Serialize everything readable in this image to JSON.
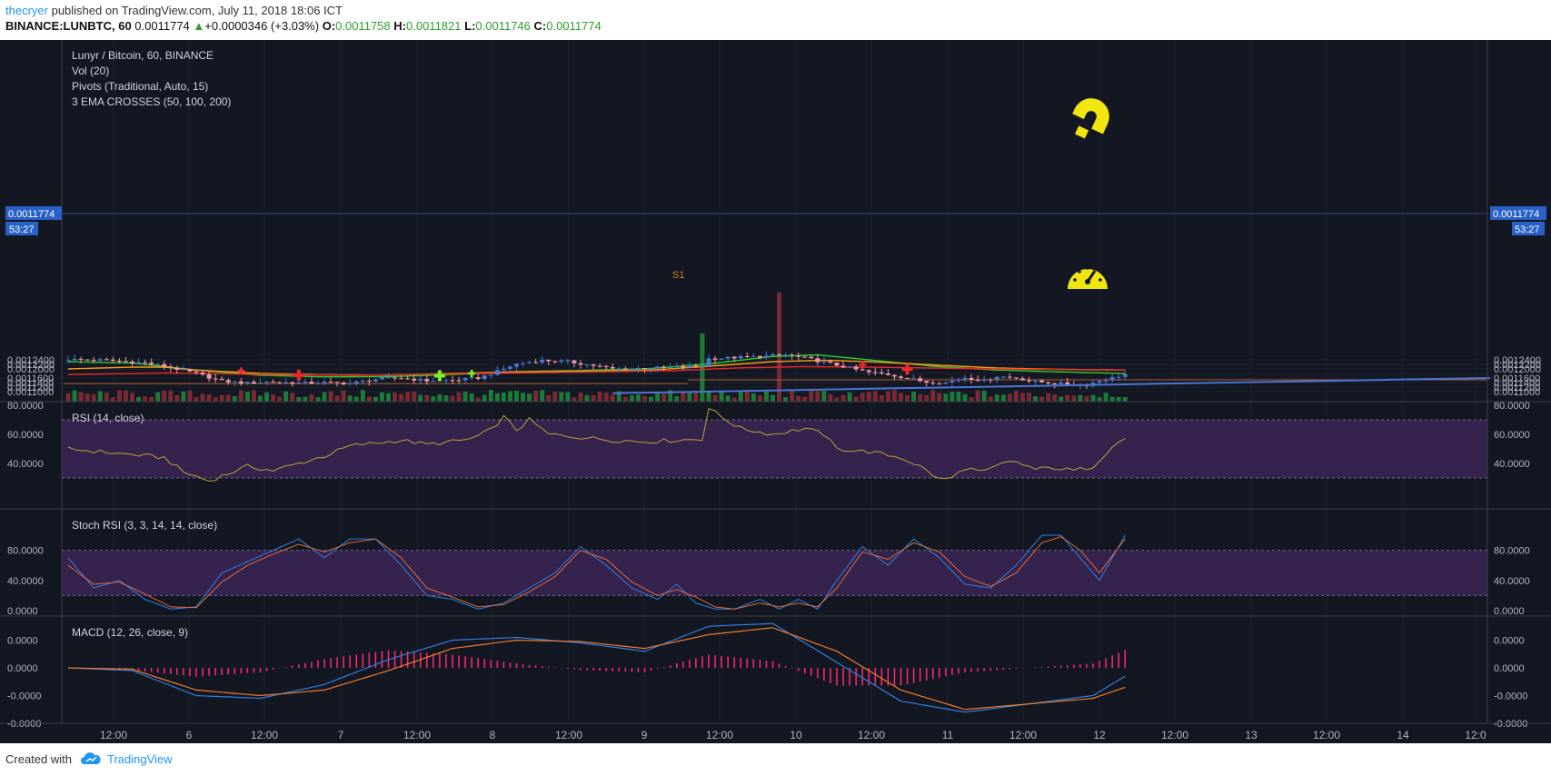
{
  "header": {
    "author": "thecryer",
    "published": "published on TradingView.com, July 11, 2018 18:06 ICT",
    "symbol": "BINANCE:LUNBTC, 60",
    "price": "0.0011774",
    "change": "+0.0000346 (+3.03%)",
    "open_label": "O:",
    "open": "0.0011758",
    "high_label": "H:",
    "high": "0.0011821",
    "low_label": "L:",
    "low": "0.0011746",
    "close_label": "C:",
    "close": "0.0011774"
  },
  "legend": {
    "title": "Lunyr / Bitcoin, 60, BINANCE",
    "vol": "Vol (20)",
    "pivots": "Pivots (Traditional, Auto, 15)",
    "ema": "3 EMA CROSSES (50, 100, 200)"
  },
  "price_label": "0.0011774",
  "countdown": "53:27",
  "pivot_label": "S1",
  "panels": {
    "rsi": "RSI (14, close)",
    "stoch": "Stoch RSI (3, 3, 14, 14, close)",
    "macd": "MACD (12, 26, close, 9)"
  },
  "footer": {
    "created": "Created with",
    "brand": "TradingView"
  },
  "colors": {
    "bg": "#131722",
    "grid": "#1e2230",
    "up": "#4a78d0",
    "down": "#f199a8",
    "ema50": "#28d02a",
    "ema100": "#ff9a1a",
    "ema200": "#e82a2a",
    "trend": "#4a76d4",
    "rsi_band": "#35234e",
    "macd": "#2f7fe0",
    "signal": "#f07a2a",
    "hist": "#ff2b71"
  },
  "icons": [
    "question-mark-magnet-icon",
    "speedometer-icon",
    "tradingview-cloud-icon"
  ],
  "chart_data": [
    {
      "type": "candlestick",
      "title": "Lunyr / Bitcoin, 60, BINANCE",
      "y_ticks": [
        "0.0012400",
        "0.0012200",
        "0.0012000",
        "0.0011800",
        "0.0011600",
        "0.0011400",
        "0.0011200",
        "0.0011000"
      ],
      "x_ticks": [
        "12:00",
        "6",
        "12:00",
        "7",
        "12:00",
        "8",
        "12:00",
        "9",
        "12:00",
        "10",
        "12:00",
        "11",
        "12:00",
        "12",
        "12:00",
        "13",
        "12:00",
        "14",
        "12:0"
      ],
      "close_anchors": [
        [
          0,
          0.001242
        ],
        [
          6,
          0.001238
        ],
        [
          12,
          0.001226
        ],
        [
          15,
          0.001212
        ],
        [
          20,
          0.00118
        ],
        [
          24,
          0.001146
        ],
        [
          28,
          0.001138
        ],
        [
          32,
          0.001144
        ],
        [
          36,
          0.001138
        ],
        [
          40,
          0.00114
        ],
        [
          44,
          0.001136
        ],
        [
          48,
          0.001155
        ],
        [
          52,
          0.00116
        ],
        [
          56,
          0.001148
        ],
        [
          60,
          0.00115
        ],
        [
          64,
          0.00116
        ],
        [
          66,
          0.001178
        ],
        [
          70,
          0.001222
        ],
        [
          74,
          0.001238
        ],
        [
          78,
          0.001232
        ],
        [
          82,
          0.001215
        ],
        [
          85,
          0.0012
        ],
        [
          92,
          0.001205
        ],
        [
          96,
          0.001208
        ],
        [
          99,
          0.001215
        ],
        [
          100,
          0.001245
        ],
        [
          108,
          0.001255
        ],
        [
          112,
          0.001262
        ],
        [
          116,
          0.001242
        ],
        [
          121,
          0.00121
        ],
        [
          125,
          0.001185
        ],
        [
          128,
          0.001175
        ],
        [
          131,
          0.00116
        ],
        [
          134,
          0.001142
        ],
        [
          137,
          0.00114
        ],
        [
          140,
          0.001162
        ],
        [
          143,
          0.001148
        ],
        [
          145,
          0.001168
        ],
        [
          148,
          0.00116
        ],
        [
          151,
          0.001144
        ],
        [
          154,
          0.001137
        ],
        [
          157,
          0.001132
        ],
        [
          159,
          0.00113
        ],
        [
          161,
          0.001148
        ],
        [
          163,
          0.00116
        ],
        [
          165,
          0.001177
        ]
      ],
      "ema_lines": {
        "EMA 50": [
          [
            0,
            0.001232
          ],
          [
            10,
            0.001226
          ],
          [
            20,
            0.001195
          ],
          [
            30,
            0.001172
          ],
          [
            40,
            0.001165
          ],
          [
            50,
            0.001166
          ],
          [
            60,
            0.001175
          ],
          [
            70,
            0.001188
          ],
          [
            80,
            0.001193
          ],
          [
            90,
            0.0012
          ],
          [
            100,
            0.001222
          ],
          [
            110,
            0.001255
          ],
          [
            117,
            0.001262
          ],
          [
            125,
            0.00124
          ],
          [
            135,
            0.001212
          ],
          [
            145,
            0.001195
          ],
          [
            155,
            0.001187
          ],
          [
            165,
            0.00118
          ]
        ],
        "EMA 100": [
          [
            0,
            0.0012
          ],
          [
            10,
            0.001208
          ],
          [
            15,
            0.001208
          ],
          [
            20,
            0.001195
          ],
          [
            30,
            0.00118
          ],
          [
            40,
            0.001174
          ],
          [
            50,
            0.001173
          ],
          [
            60,
            0.00118
          ],
          [
            70,
            0.001187
          ],
          [
            80,
            0.00119
          ],
          [
            90,
            0.001193
          ],
          [
            100,
            0.001212
          ],
          [
            110,
            0.001232
          ],
          [
            118,
            0.001238
          ],
          [
            125,
            0.001232
          ],
          [
            135,
            0.001218
          ],
          [
            145,
            0.001204
          ],
          [
            155,
            0.001198
          ],
          [
            165,
            0.001195
          ]
        ],
        "EMA 200": [
          [
            0,
            0.001175
          ],
          [
            15,
            0.001182
          ],
          [
            25,
            0.001178
          ],
          [
            35,
            0.001174
          ],
          [
            45,
            0.001172
          ],
          [
            55,
            0.001176
          ],
          [
            65,
            0.00118
          ],
          [
            75,
            0.001184
          ],
          [
            85,
            0.001188
          ],
          [
            95,
            0.001193
          ],
          [
            105,
            0.001205
          ],
          [
            115,
            0.00121
          ],
          [
            125,
            0.001208
          ],
          [
            135,
            0.001204
          ],
          [
            145,
            0.0012
          ],
          [
            155,
            0.001197
          ],
          [
            165,
            0.001195
          ]
        ]
      },
      "pivot_levels": [
        0.001135,
        0.001152
      ],
      "trend_line": [
        [
          85,
          0.001093
        ],
        [
          222,
          0.00116
        ]
      ],
      "volume_spikes": [
        [
          99,
          0.25
        ],
        [
          111,
          0.4
        ]
      ]
    },
    {
      "type": "line",
      "title": "RSI (14, close)",
      "y_ticks": [
        "80.0000",
        "60.0000",
        "40.0000"
      ],
      "band": [
        30,
        70
      ],
      "values": [
        [
          0,
          50
        ],
        [
          5,
          48
        ],
        [
          10,
          46
        ],
        [
          15,
          44
        ],
        [
          18,
          34
        ],
        [
          22,
          28
        ],
        [
          25,
          33
        ],
        [
          28,
          38
        ],
        [
          32,
          35
        ],
        [
          36,
          40
        ],
        [
          40,
          45
        ],
        [
          44,
          52
        ],
        [
          48,
          54
        ],
        [
          52,
          56
        ],
        [
          56,
          53
        ],
        [
          60,
          55
        ],
        [
          63,
          57
        ],
        [
          66,
          63
        ],
        [
          68,
          72
        ],
        [
          70,
          63
        ],
        [
          72,
          70
        ],
        [
          75,
          60
        ],
        [
          80,
          58
        ],
        [
          85,
          56
        ],
        [
          90,
          55
        ],
        [
          95,
          56
        ],
        [
          99,
          57
        ],
        [
          100,
          78
        ],
        [
          102,
          72
        ],
        [
          105,
          64
        ],
        [
          110,
          60
        ],
        [
          115,
          64
        ],
        [
          118,
          60
        ],
        [
          120,
          50
        ],
        [
          125,
          48
        ],
        [
          130,
          44
        ],
        [
          133,
          38
        ],
        [
          136,
          29
        ],
        [
          138,
          30
        ],
        [
          140,
          37
        ],
        [
          143,
          34
        ],
        [
          146,
          40
        ],
        [
          148,
          41
        ],
        [
          151,
          36
        ],
        [
          154,
          37
        ],
        [
          157,
          35
        ],
        [
          160,
          38
        ],
        [
          163,
          52
        ],
        [
          165,
          57
        ]
      ]
    },
    {
      "type": "line",
      "title": "Stoch RSI (3, 3, 14, 14, close)",
      "y_ticks": [
        "80.0000",
        "40.0000",
        "0.0000"
      ],
      "band": [
        20,
        80
      ],
      "series": [
        {
          "values": [
            [
              0,
              70
            ],
            [
              4,
              30
            ],
            [
              8,
              40
            ],
            [
              12,
              15
            ],
            [
              16,
              2
            ],
            [
              20,
              5
            ],
            [
              24,
              50
            ],
            [
              28,
              65
            ],
            [
              32,
              80
            ],
            [
              36,
              95
            ],
            [
              40,
              70
            ],
            [
              44,
              95
            ],
            [
              48,
              95
            ],
            [
              52,
              60
            ],
            [
              56,
              20
            ],
            [
              60,
              15
            ],
            [
              64,
              2
            ],
            [
              68,
              10
            ],
            [
              72,
              30
            ],
            [
              76,
              50
            ],
            [
              80,
              85
            ],
            [
              84,
              60
            ],
            [
              88,
              30
            ],
            [
              92,
              15
            ],
            [
              95,
              35
            ],
            [
              98,
              10
            ],
            [
              101,
              2
            ],
            [
              104,
              2
            ],
            [
              108,
              15
            ],
            [
              111,
              2
            ],
            [
              114,
              15
            ],
            [
              117,
              2
            ],
            [
              120,
              40
            ],
            [
              124,
              85
            ],
            [
              128,
              60
            ],
            [
              132,
              95
            ],
            [
              136,
              70
            ],
            [
              140,
              35
            ],
            [
              144,
              30
            ],
            [
              148,
              60
            ],
            [
              152,
              100
            ],
            [
              155,
              100
            ],
            [
              158,
              70
            ],
            [
              161,
              40
            ],
            [
              165,
              100
            ]
          ]
        },
        {
          "values": [
            [
              0,
              60
            ],
            [
              4,
              35
            ],
            [
              8,
              38
            ],
            [
              12,
              22
            ],
            [
              16,
              5
            ],
            [
              20,
              4
            ],
            [
              24,
              38
            ],
            [
              28,
              60
            ],
            [
              32,
              75
            ],
            [
              36,
              88
            ],
            [
              40,
              78
            ],
            [
              44,
              90
            ],
            [
              48,
              95
            ],
            [
              52,
              70
            ],
            [
              56,
              30
            ],
            [
              60,
              18
            ],
            [
              64,
              5
            ],
            [
              68,
              8
            ],
            [
              72,
              25
            ],
            [
              76,
              45
            ],
            [
              80,
              80
            ],
            [
              84,
              68
            ],
            [
              88,
              38
            ],
            [
              92,
              20
            ],
            [
              95,
              28
            ],
            [
              98,
              18
            ],
            [
              101,
              5
            ],
            [
              104,
              2
            ],
            [
              108,
              10
            ],
            [
              111,
              5
            ],
            [
              114,
              10
            ],
            [
              117,
              5
            ],
            [
              120,
              30
            ],
            [
              124,
              78
            ],
            [
              128,
              68
            ],
            [
              132,
              90
            ],
            [
              136,
              78
            ],
            [
              140,
              45
            ],
            [
              144,
              32
            ],
            [
              148,
              50
            ],
            [
              152,
              90
            ],
            [
              155,
              98
            ],
            [
              158,
              80
            ],
            [
              161,
              50
            ],
            [
              165,
              95
            ]
          ]
        }
      ]
    },
    {
      "type": "line",
      "title": "MACD (12, 26, close, 9)",
      "y_ticks": [
        "0.0000",
        "0.0000",
        "-0.0000",
        "-0.0000"
      ],
      "series": [
        {
          "name": "MACD",
          "values": [
            [
              0,
              0.0
            ],
            [
              10,
              -0.1
            ],
            [
              20,
              -1.0
            ],
            [
              30,
              -1.1
            ],
            [
              40,
              -0.6
            ],
            [
              50,
              0.3
            ],
            [
              60,
              1.0
            ],
            [
              70,
              1.1
            ],
            [
              80,
              0.9
            ],
            [
              90,
              0.6
            ],
            [
              100,
              1.5
            ],
            [
              110,
              1.6
            ],
            [
              120,
              0.2
            ],
            [
              130,
              -1.2
            ],
            [
              140,
              -1.6
            ],
            [
              150,
              -1.3
            ],
            [
              160,
              -1.0
            ],
            [
              165,
              -0.3
            ]
          ]
        },
        {
          "name": "Signal",
          "values": [
            [
              0,
              0.0
            ],
            [
              10,
              -0.05
            ],
            [
              20,
              -0.8
            ],
            [
              30,
              -1.0
            ],
            [
              40,
              -0.8
            ],
            [
              50,
              -0.1
            ],
            [
              60,
              0.7
            ],
            [
              70,
              1.0
            ],
            [
              80,
              0.95
            ],
            [
              90,
              0.7
            ],
            [
              100,
              1.2
            ],
            [
              110,
              1.45
            ],
            [
              120,
              0.6
            ],
            [
              130,
              -0.8
            ],
            [
              140,
              -1.5
            ],
            [
              150,
              -1.3
            ],
            [
              160,
              -1.1
            ],
            [
              165,
              -0.7
            ]
          ]
        }
      ]
    }
  ]
}
